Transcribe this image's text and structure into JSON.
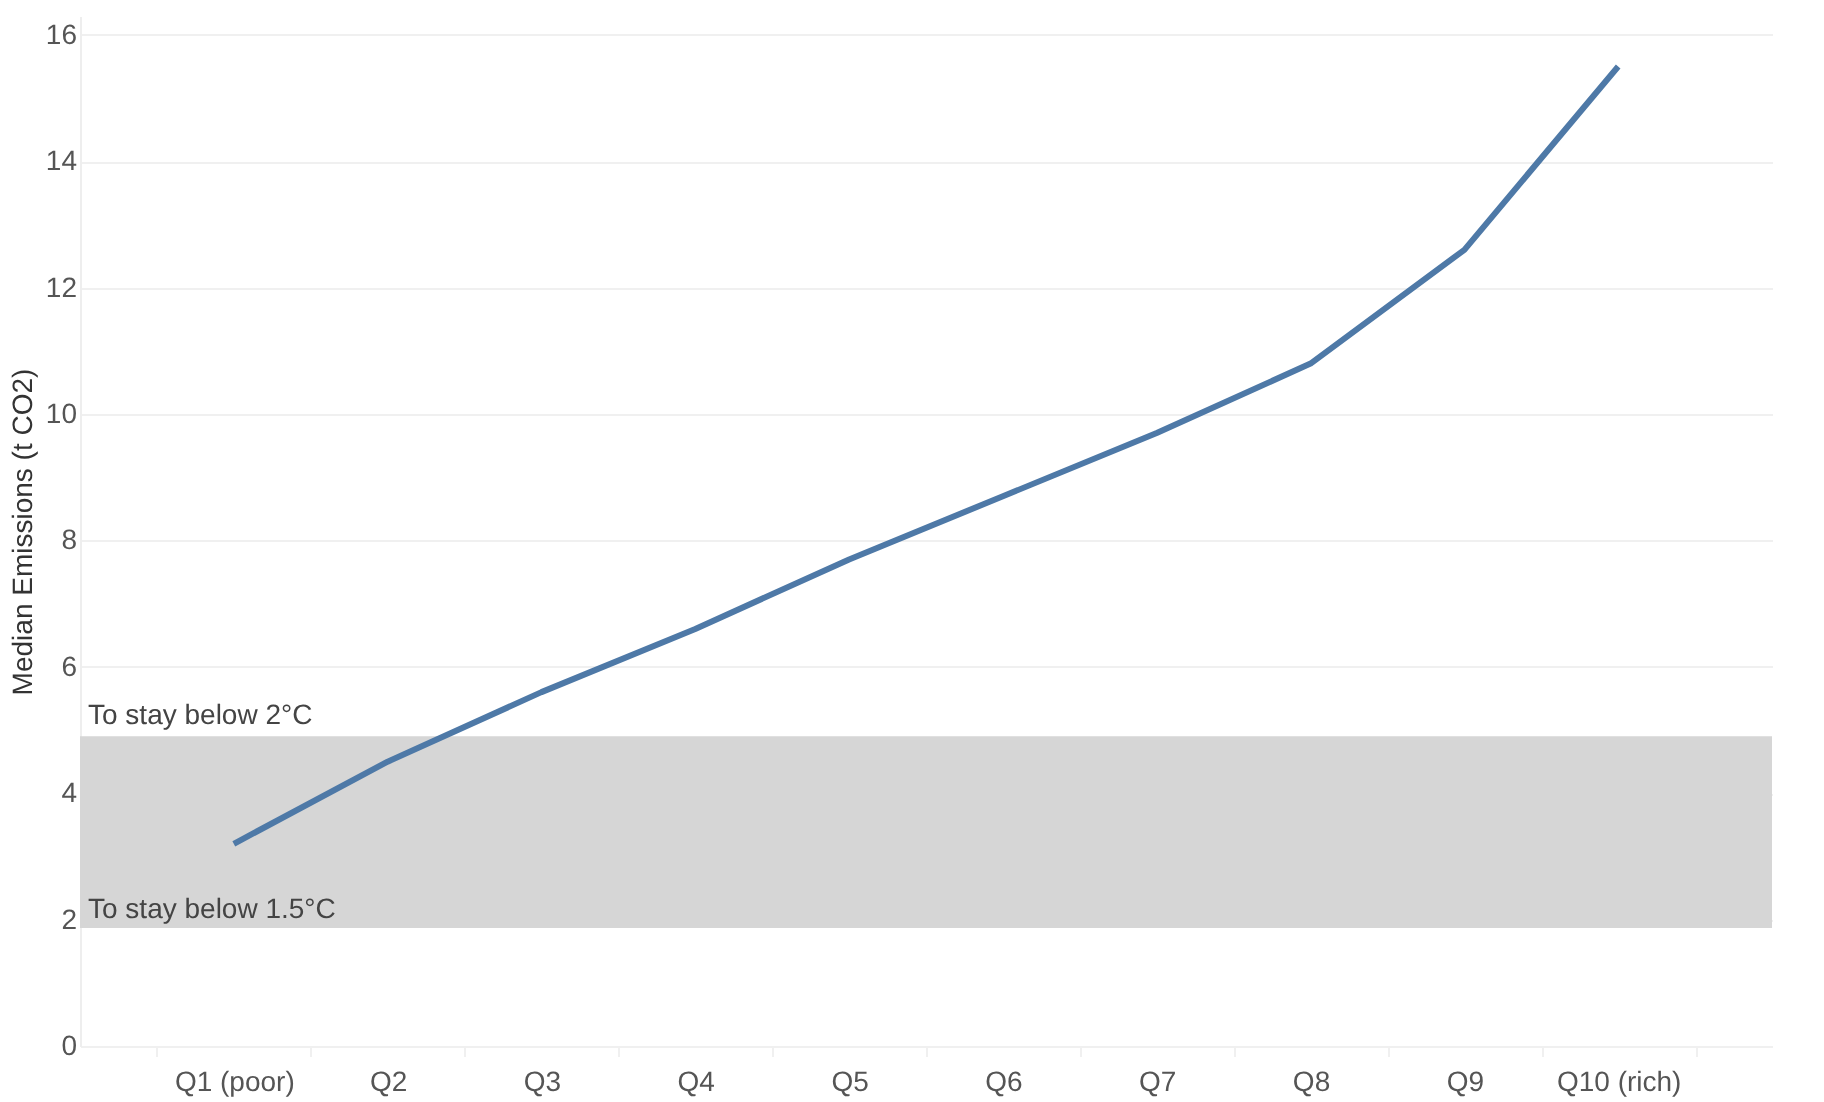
{
  "chart_data": {
    "type": "line",
    "ylabel": "Median Emissions (t CO2)",
    "categories": [
      "Q1 (poor)",
      "Q2",
      "Q3",
      "Q4",
      "Q5",
      "Q6",
      "Q7",
      "Q8",
      "Q9",
      "Q10 (rich)"
    ],
    "series": [
      {
        "color": "#4e79a7",
        "values": [
          3.2,
          4.5,
          5.6,
          6.6,
          7.7,
          8.7,
          9.7,
          10.8,
          12.6,
          15.5
        ]
      }
    ],
    "ylim": [
      0,
      16.3
    ],
    "yticks": [
      0,
      2,
      4,
      6,
      8,
      10,
      12,
      14,
      16
    ],
    "grid": "y",
    "marker": "none",
    "line_style": "solid",
    "bands": [
      {
        "axis": "y",
        "from": 1.9,
        "to": 4.9,
        "color": "#d6d6d6",
        "label": "To stay below 2°C"
      }
    ],
    "ref_lines": [
      {
        "axis": "y",
        "value": 1.9,
        "color": "#d6d6d6",
        "label": "To stay below 1.5°C"
      }
    ]
  }
}
